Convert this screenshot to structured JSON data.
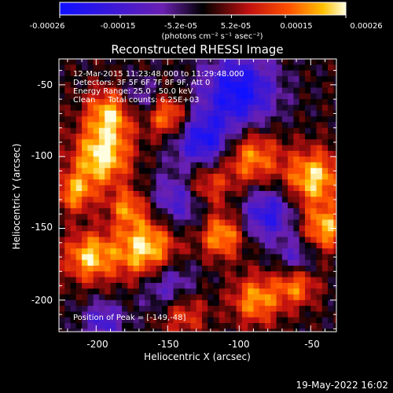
{
  "colorbar": {
    "ticks": [
      "-0.00026",
      "-0.00015",
      "-5.2e-05",
      "5.2e-05",
      "0.00015",
      "0.00026"
    ],
    "unit_label": "(photons cm⁻² s⁻¹ asec⁻²)",
    "min": -0.00026,
    "max": 0.00026
  },
  "image": {
    "title": "Reconstructed RHESSI Image",
    "info_lines": [
      "12-Mar-2015 11:23:48.000 to 11:29:48.000",
      "Detectors: 3F 5F 6F 7F 8F 9F, Att 0",
      "Energy Range: 25.0 - 50.0 keV",
      "Clean     Total counts: 6.25E+03"
    ],
    "peak_label": "Position of Peak = [-149,-48]"
  },
  "axes": {
    "xlabel": "Heliocentric X (arcsec)",
    "ylabel": "Heliocentric Y (arcsec)",
    "xticks": [
      -200,
      -150,
      -100,
      -50
    ],
    "yticks": [
      -50,
      -100,
      -150,
      -200
    ],
    "xlim": [
      -226,
      -32
    ],
    "ylim": [
      -222,
      -32
    ]
  },
  "footer": {
    "timestamp": "19-May-2022 16:02"
  }
}
